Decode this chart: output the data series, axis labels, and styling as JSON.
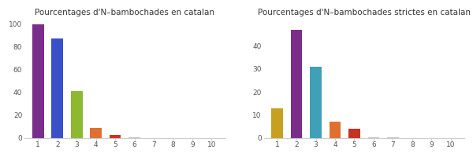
{
  "left": {
    "title": "Pourcentages d'N–bambochades en catalan",
    "categories": [
      1,
      2,
      3,
      4,
      5,
      6,
      7,
      8,
      9,
      10
    ],
    "values": [
      100,
      87,
      41,
      9,
      2.5,
      0.2,
      0.1,
      0.05,
      0.02,
      0.01
    ],
    "colors": [
      "#7b2d8b",
      "#3a50c8",
      "#8db830",
      "#e07030",
      "#d03020",
      "#bbbbbb",
      "#bbbbbb",
      "#bbbbbb",
      "#bbbbbb",
      "#bbbbbb"
    ],
    "ylim": [
      0,
      105
    ],
    "yticks": [
      0,
      20,
      40,
      60,
      80,
      100
    ]
  },
  "right": {
    "title": "Pourcentages d'N–bambochades strictes en catalan",
    "categories": [
      1,
      2,
      3,
      4,
      5,
      6,
      7,
      8,
      9,
      10
    ],
    "values": [
      13,
      47,
      31,
      7,
      4,
      0.2,
      0.1,
      0.05,
      0.02,
      0.01
    ],
    "colors": [
      "#c8a020",
      "#7b2d8b",
      "#40a0b8",
      "#e07030",
      "#c83020",
      "#bbbbbb",
      "#bbbbbb",
      "#bbbbbb",
      "#bbbbbb",
      "#bbbbbb"
    ],
    "ylim": [
      0,
      52
    ],
    "yticks": [
      0,
      10,
      20,
      30,
      40
    ]
  },
  "bg_color": "#ffffff",
  "bar_width": 0.6,
  "title_fontsize": 7.5,
  "tick_fontsize": 6.5
}
